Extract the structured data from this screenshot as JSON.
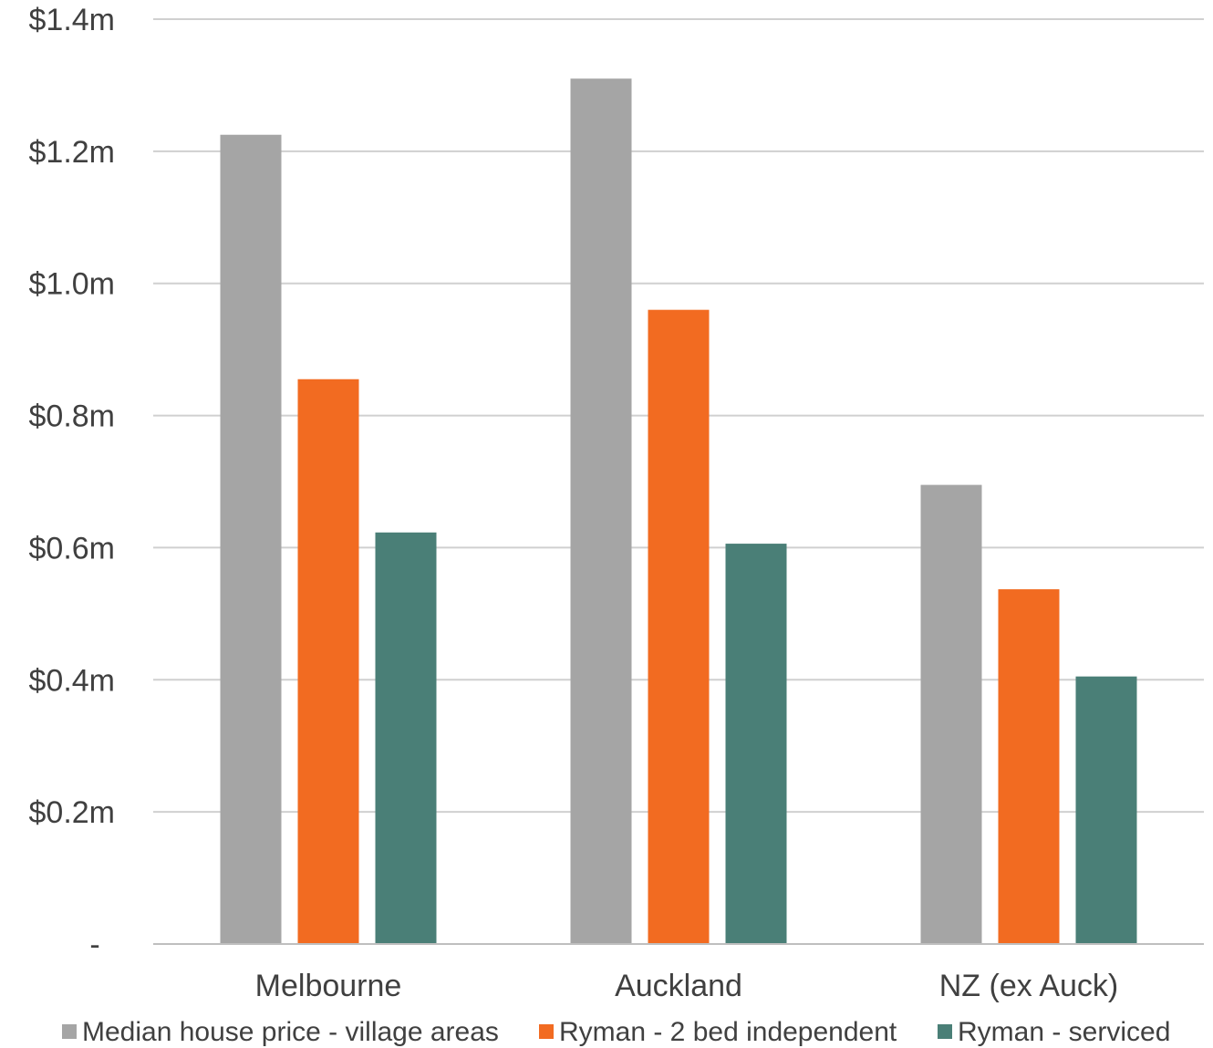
{
  "chart_data": {
    "type": "bar",
    "categories": [
      "Melbourne",
      "Auckland",
      "NZ (ex Auck)"
    ],
    "series": [
      {
        "name": "Median house price - village areas",
        "color": "#a5a5a5",
        "values": [
          1.225,
          1.31,
          0.695
        ]
      },
      {
        "name": "Ryman - 2 bed independent",
        "color": "#f26b21",
        "values": [
          0.855,
          0.96,
          0.537
        ]
      },
      {
        "name": "Ryman - serviced",
        "color": "#4a7f77",
        "values": [
          0.623,
          0.606,
          0.405
        ]
      }
    ],
    "yticks": [
      {
        "value": 0,
        "label": "-"
      },
      {
        "value": 0.2,
        "label": "$0.2m"
      },
      {
        "value": 0.4,
        "label": "$0.4m"
      },
      {
        "value": 0.6,
        "label": "$0.6m"
      },
      {
        "value": 0.8,
        "label": "$0.8m"
      },
      {
        "value": 1.0,
        "label": "$1.0m"
      },
      {
        "value": 1.2,
        "label": "$1.2m"
      },
      {
        "value": 1.4,
        "label": "$1.4m"
      }
    ],
    "ylim": [
      0,
      1.4
    ],
    "grid": true,
    "legend": "bottom"
  }
}
